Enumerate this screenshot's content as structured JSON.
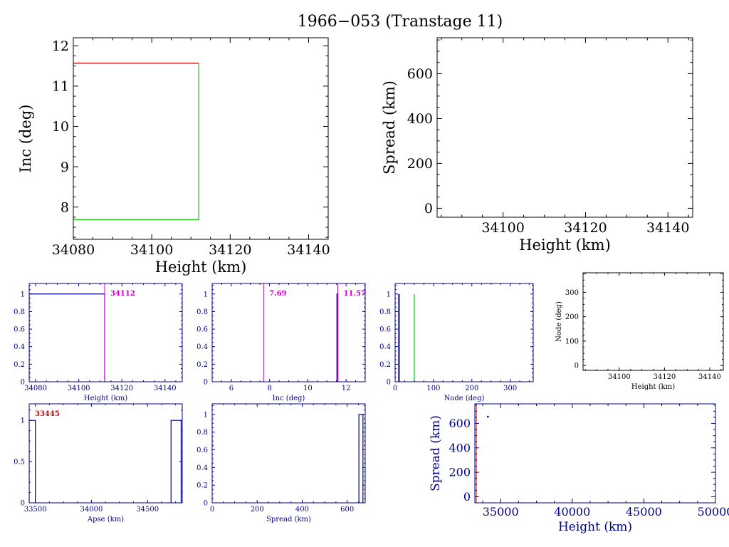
{
  "title": "1966−053 (Transtage 11)",
  "colors": {
    "black": "#000000",
    "blue": "#00008b",
    "red": "#cc0000",
    "green": "#00cc00",
    "magenta": "#cc00cc"
  },
  "chart_data": [
    {
      "id": "inc_height",
      "type": "line",
      "xlabel": "Height (km)",
      "ylabel": "Inc (deg)",
      "xlim": [
        34080,
        34145
      ],
      "ylim": [
        7.2,
        12.2
      ],
      "xticks": [
        "34080",
        "34100",
        "34120",
        "34140"
      ],
      "yticks": [
        "8",
        "9",
        "10",
        "11",
        "12"
      ],
      "series": [
        {
          "color": "red",
          "x": [
            34080,
            34112
          ],
          "y": [
            11.57,
            11.57
          ]
        },
        {
          "color": "green",
          "x": [
            34080,
            34112,
            34112
          ],
          "y": [
            7.69,
            7.69,
            11.57
          ]
        }
      ]
    },
    {
      "id": "spread_height",
      "type": "scatter",
      "xlabel": "Height (km)",
      "ylabel": "Spread (km)",
      "xlim": [
        34084,
        34146
      ],
      "ylim": [
        -40,
        760
      ],
      "xticks": [
        "34100",
        "34120",
        "34140"
      ],
      "yticks": [
        "0",
        "200",
        "400",
        "600"
      ],
      "series": []
    },
    {
      "id": "height_hist",
      "type": "bar",
      "xlabel": "Height (km)",
      "ylabel": "",
      "xlim": [
        34077,
        34148
      ],
      "ylim": [
        0,
        1.12
      ],
      "xticks": [
        "34080",
        "34100",
        "34120",
        "34140"
      ],
      "yticks": [
        "0",
        "0.2",
        "0.4",
        "0.6",
        "0.8",
        "1"
      ],
      "bars": [
        {
          "x0": 34077,
          "x1": 34112,
          "h": 1
        }
      ],
      "markers": [
        {
          "x": 34112,
          "label": "34112"
        }
      ]
    },
    {
      "id": "inc_hist",
      "type": "bar",
      "xlabel": "Inc (deg)",
      "ylabel": "",
      "xlim": [
        5,
        13
      ],
      "ylim": [
        0,
        1.12
      ],
      "xticks": [
        "6",
        "8",
        "10",
        "12"
      ],
      "yticks": [
        "0",
        "0.2",
        "0.4",
        "0.6",
        "0.8",
        "1"
      ],
      "bars": [
        {
          "x0": 11.52,
          "x1": 11.57,
          "h": 1
        }
      ],
      "markers": [
        {
          "x": 7.69,
          "label": "7.69"
        },
        {
          "x": 11.57,
          "label": "11.57"
        }
      ]
    },
    {
      "id": "node_hist",
      "type": "bar",
      "xlabel": "Node (deg)",
      "ylabel": "",
      "xlim": [
        0,
        360
      ],
      "ylim": [
        0,
        1.12
      ],
      "xticks": [
        "0",
        "100",
        "200",
        "300"
      ],
      "yticks": [
        "0",
        "0.2",
        "0.4",
        "0.6",
        "0.8",
        "1"
      ],
      "blue_lines": [
        {
          "x": 10,
          "h": 1
        }
      ],
      "green_lines": [
        {
          "x": 50,
          "h": 1
        }
      ]
    },
    {
      "id": "node_height",
      "type": "scatter",
      "xlabel": "Height (km)",
      "ylabel": "Node (deg)",
      "xlim": [
        34084,
        34146
      ],
      "ylim": [
        -20,
        380
      ],
      "xticks": [
        "34100",
        "34120",
        "34140"
      ],
      "yticks": [
        "0",
        "100",
        "200",
        "300"
      ],
      "series": []
    },
    {
      "id": "apse_hist",
      "type": "bar",
      "xlabel": "Apse (km)",
      "ylabel": "",
      "xlim": [
        33445,
        34810
      ],
      "ylim": [
        0,
        1.2
      ],
      "xticks": [
        "33500",
        "34000",
        "34500"
      ],
      "yticks": [
        "0",
        "0.5",
        "1"
      ],
      "bars": [
        {
          "x0": 33445,
          "x1": 33500,
          "h": 1
        },
        {
          "x0": 34710,
          "x1": 34800,
          "h": 1
        }
      ],
      "markers": [
        {
          "x": 33445,
          "label": "33445"
        }
      ]
    },
    {
      "id": "spread_hist",
      "type": "bar",
      "xlabel": "Spread (km)",
      "ylabel": "",
      "xlim": [
        0,
        680
      ],
      "ylim": [
        0,
        1.12
      ],
      "xticks": [
        "0",
        "200",
        "400",
        "600"
      ],
      "yticks": [
        "0",
        "0.2",
        "0.4",
        "0.6",
        "0.8",
        "1"
      ],
      "bars": [
        {
          "x0": 652,
          "x1": 670,
          "h": 1
        }
      ]
    },
    {
      "id": "spread_height_wide",
      "type": "scatter",
      "xlabel": "Height (km)",
      "ylabel": "Spread (km)",
      "xlim": [
        33200,
        50000
      ],
      "ylim": [
        -50,
        760
      ],
      "xticks": [
        "35000",
        "40000",
        "45000",
        "50000"
      ],
      "yticks": [
        "0",
        "200",
        "400",
        "600"
      ],
      "points": [
        {
          "x": 34112,
          "y": 655
        }
      ],
      "markers": [
        {
          "x": 33300
        }
      ]
    }
  ]
}
